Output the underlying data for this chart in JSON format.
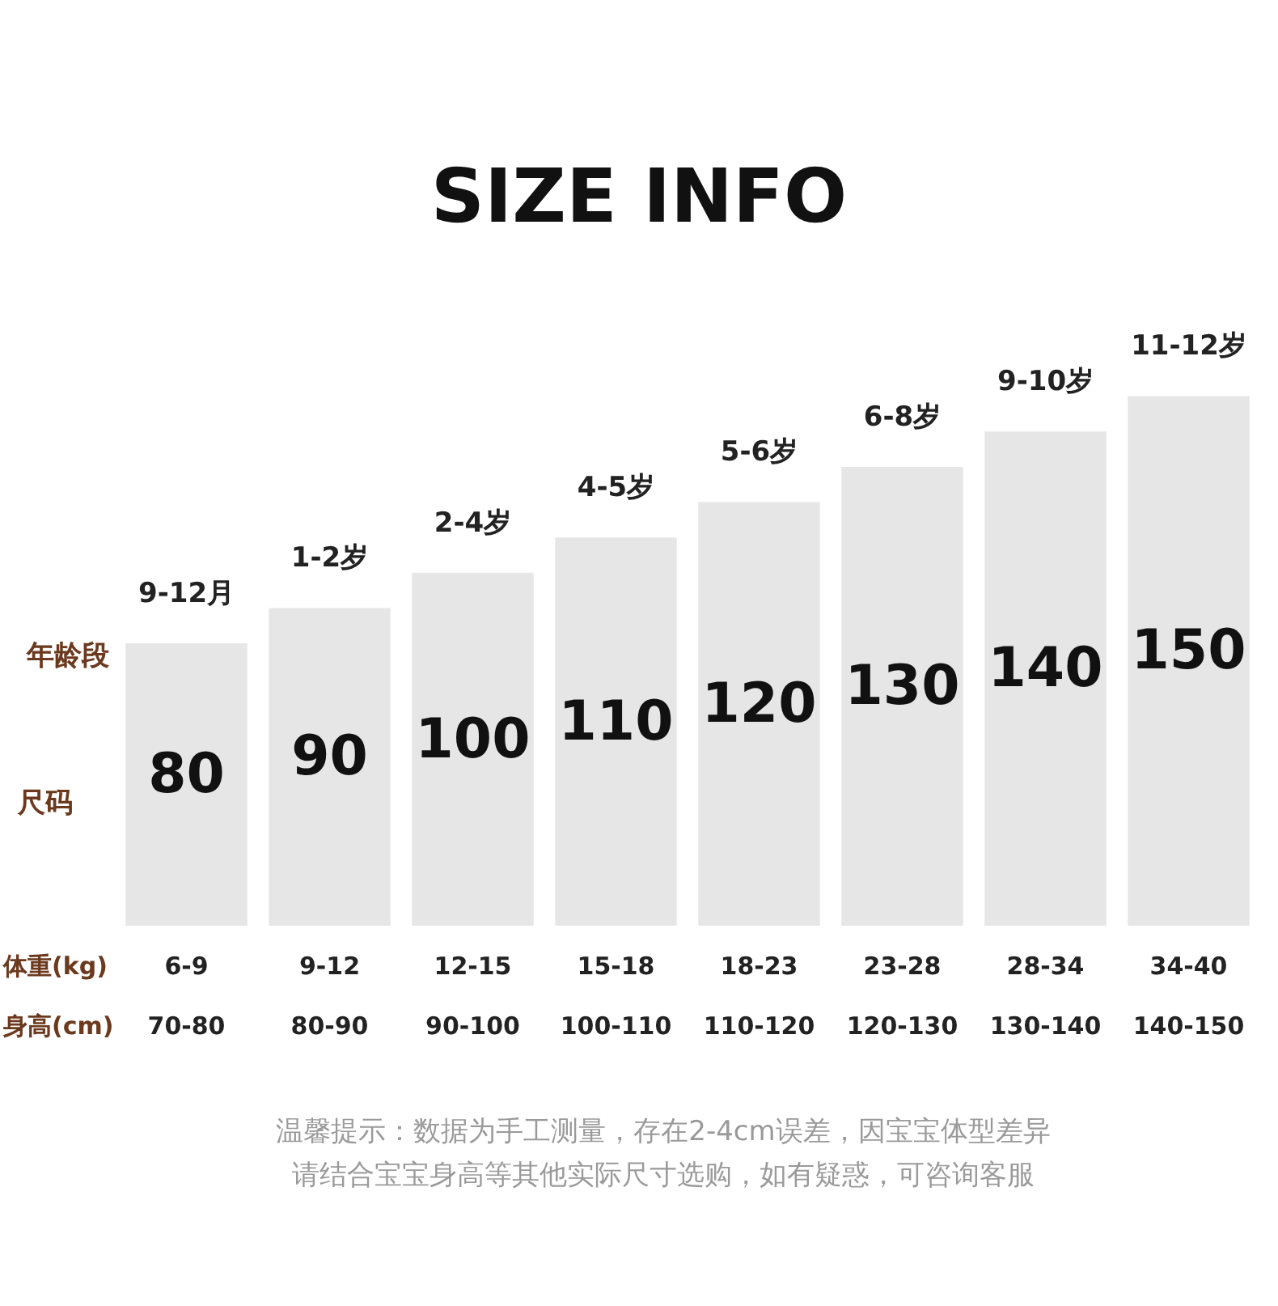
{
  "chart_data": {
    "type": "bar",
    "title": "SIZE INFO",
    "categories": [
      "9-12月",
      "1-2岁",
      "2-4岁",
      "4-5岁",
      "5-6岁",
      "6-8岁",
      "9-10岁",
      "11-12岁"
    ],
    "values": [
      80,
      90,
      100,
      110,
      120,
      130,
      140,
      150
    ],
    "data_labels": true,
    "color": "#e6e6e6",
    "legend": false,
    "annotations": [
      "年龄段",
      "尺码",
      "体重(kg)",
      "身高(cm)",
      "6-9",
      "9-12",
      "12-15",
      "15-18",
      "18-23",
      "23-28",
      "28-34",
      "34-40",
      "70-80",
      "80-90",
      "90-100",
      "100-110",
      "110-120",
      "120-130",
      "130-140",
      "140-150",
      "温馨提示：数据为手工测量，存在2-4cm误差，因宝宝体型差异",
      "请结合宝宝身高等其他实际尺寸选购，如有疑惑，可咨询客服"
    ]
  }
}
